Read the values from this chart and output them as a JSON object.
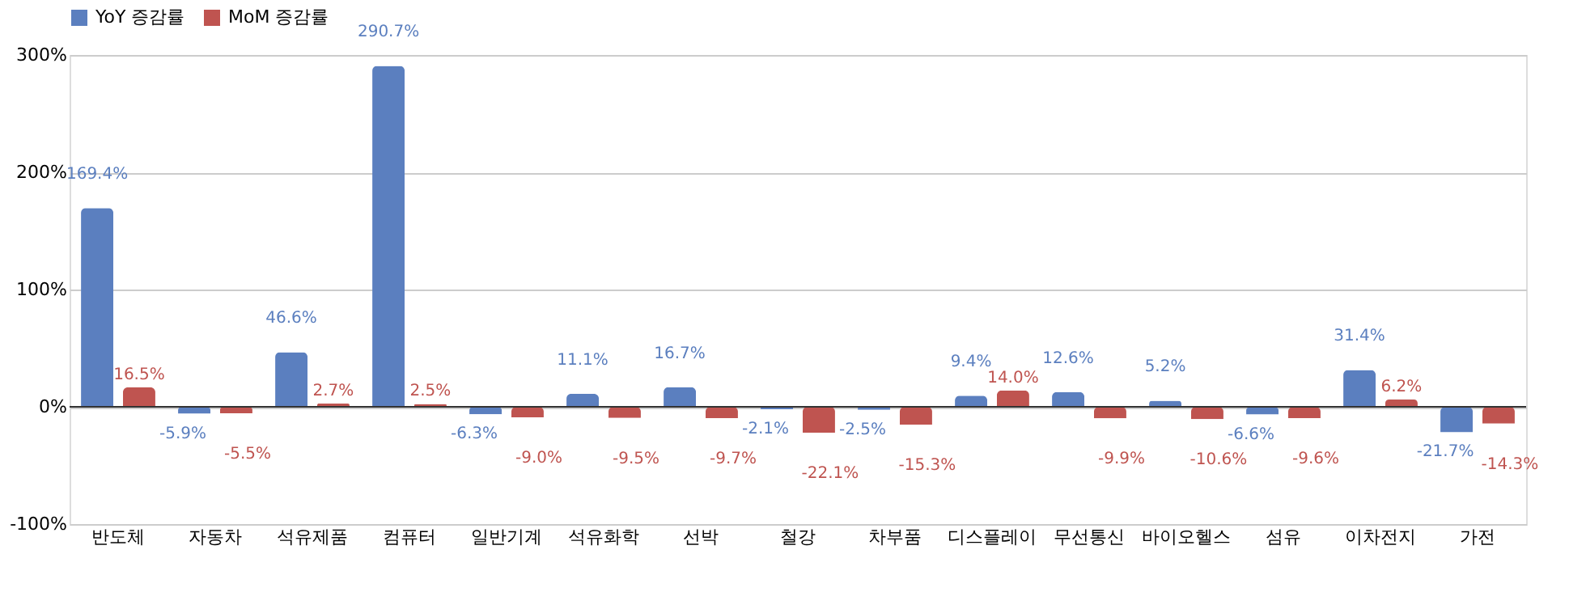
{
  "chart_data": {
    "type": "bar",
    "categories": [
      "반도체",
      "자동차",
      "석유제품",
      "컴퓨터",
      "일반기계",
      "석유화학",
      "선박",
      "철강",
      "차부품",
      "디스플레이",
      "무선통신",
      "바이오헬스",
      "섬유",
      "이차전지",
      "가전"
    ],
    "series": [
      {
        "name": "YoY 증감률",
        "color": "#5b7fbf",
        "values": [
          169.4,
          -5.9,
          46.6,
          290.7,
          -6.3,
          11.1,
          16.7,
          -2.1,
          -2.5,
          9.4,
          12.6,
          5.2,
          -6.6,
          31.4,
          -21.7
        ],
        "value_labels": [
          "169.4%",
          "-5.9%",
          "46.6%",
          "290.7%",
          "-6.3%",
          "11.1%",
          "16.7%",
          "-2.1%",
          "-2.5%",
          "9.4%",
          "12.6%",
          "5.2%",
          "-6.6%",
          "31.4%",
          "-21.7%"
        ]
      },
      {
        "name": "MoM 증감률",
        "color": "#bf5450",
        "values": [
          16.5,
          -5.5,
          2.7,
          2.5,
          -9.0,
          -9.5,
          -9.7,
          -22.1,
          -15.3,
          14.0,
          -9.9,
          -10.6,
          -9.6,
          6.2,
          -14.3
        ],
        "value_labels": [
          "16.5%",
          "-5.5%",
          "2.7%",
          "2.5%",
          "-9.0%",
          "-9.5%",
          "-9.7%",
          "-22.1%",
          "-15.3%",
          "14.0%",
          "-9.9%",
          "-10.6%",
          "-9.6%",
          "6.2%",
          "-14.3%"
        ]
      }
    ],
    "ylim": [
      -100,
      300
    ],
    "yticks": [
      {
        "value": -100,
        "label": "-100%"
      },
      {
        "value": 0,
        "label": "0%"
      },
      {
        "value": 100,
        "label": "100%"
      },
      {
        "value": 200,
        "label": "200%"
      },
      {
        "value": 300,
        "label": "300%"
      }
    ],
    "grid": "y",
    "legend": "top"
  }
}
